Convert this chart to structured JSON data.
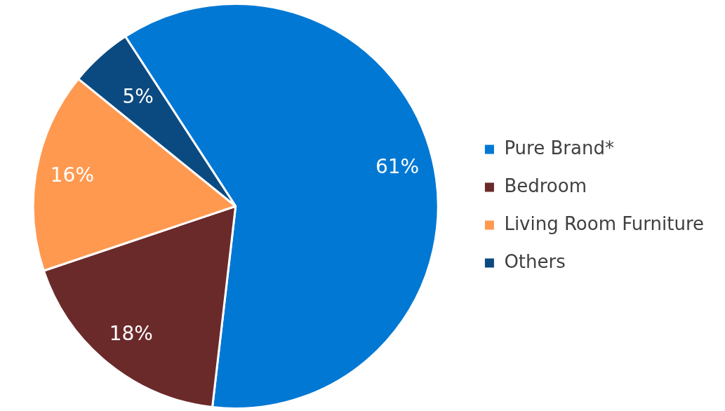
{
  "chart_data": {
    "type": "pie",
    "categories": [
      "Pure Brand*",
      "Bedroom",
      "Living Room Furniture",
      "Others"
    ],
    "values": [
      61,
      18,
      16,
      5
    ],
    "colors": [
      "#0078d4",
      "#6b2a2a",
      "#ff9950",
      "#0b4a80"
    ],
    "value_labels": [
      "61%",
      "18%",
      "16%",
      "5%"
    ],
    "legend": "right"
  }
}
